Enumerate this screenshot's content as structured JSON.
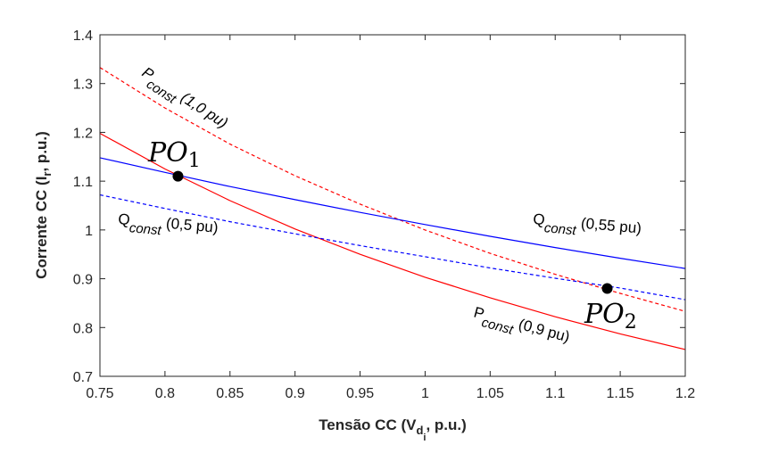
{
  "chart_data": {
    "type": "line",
    "xlabel": "Tensão CC (V",
    "xlabel_sub": "d",
    "xlabel_subsub": "i",
    "xlabel_tail": ", p.u.)",
    "ylabel": "Corrente CC (I",
    "ylabel_sub": "r",
    "ylabel_tail": ", p.u.)",
    "xlim": [
      0.75,
      1.2
    ],
    "ylim": [
      0.7,
      1.4
    ],
    "xticks": [
      "0.75",
      "0.8",
      "0.85",
      "0.9",
      "0.95",
      "1",
      "1.05",
      "1.1",
      "1.15",
      "1.2"
    ],
    "yticks": [
      "0.7",
      "0.8",
      "0.9",
      "1",
      "1.1",
      "1.2",
      "1.3",
      "1.4"
    ],
    "grid": false,
    "series": [
      {
        "id": "p_const_1_0",
        "color": "#ff0000",
        "style": "dashed",
        "x": [
          0.75,
          0.8,
          0.85,
          0.9,
          0.95,
          1.0,
          1.05,
          1.1,
          1.15,
          1.2
        ],
        "y": [
          1.333,
          1.25,
          1.176,
          1.111,
          1.053,
          1.0,
          0.952,
          0.909,
          0.87,
          0.833
        ]
      },
      {
        "id": "p_const_0_9",
        "color": "#ff0000",
        "style": "solid",
        "x": [
          0.75,
          0.8,
          0.85,
          0.9,
          0.95,
          1.0,
          1.05,
          1.1,
          1.15,
          1.2
        ],
        "y": [
          1.198,
          1.125,
          1.06,
          1.002,
          0.95,
          0.903,
          0.861,
          0.822,
          0.787,
          0.755
        ]
      },
      {
        "id": "q_const_0_55",
        "color": "#0000ff",
        "style": "solid",
        "x": [
          0.75,
          0.8,
          0.85,
          0.9,
          0.95,
          1.0,
          1.05,
          1.1,
          1.15,
          1.2
        ],
        "y": [
          1.148,
          1.118,
          1.089,
          1.062,
          1.036,
          1.011,
          0.987,
          0.964,
          0.942,
          0.921
        ]
      },
      {
        "id": "q_const_0_5",
        "color": "#0000ff",
        "style": "dashed",
        "x": [
          0.75,
          0.8,
          0.85,
          0.9,
          0.95,
          1.0,
          1.05,
          1.1,
          1.15,
          1.2
        ],
        "y": [
          1.072,
          1.044,
          1.017,
          0.992,
          0.968,
          0.945,
          0.922,
          0.901,
          0.881,
          0.857
        ]
      }
    ],
    "points": [
      {
        "id": "po1",
        "x": 0.81,
        "y": 1.11,
        "label": "PO",
        "sub": "1"
      },
      {
        "id": "po2",
        "x": 1.14,
        "y": 0.88,
        "label": "PO",
        "sub": "2"
      }
    ],
    "annotations": [
      {
        "id": "p10",
        "main": "P",
        "sub": "const",
        "tail": " (1,0 pu)"
      },
      {
        "id": "q05",
        "main": "Q",
        "sub": "const",
        "tail": " (0,5 pu)"
      },
      {
        "id": "q055",
        "main": "Q",
        "sub": "const",
        "tail": " (0,55 pu)"
      },
      {
        "id": "p09",
        "main": "P",
        "sub": "const",
        "tail": " (0,9 pu)"
      }
    ]
  }
}
